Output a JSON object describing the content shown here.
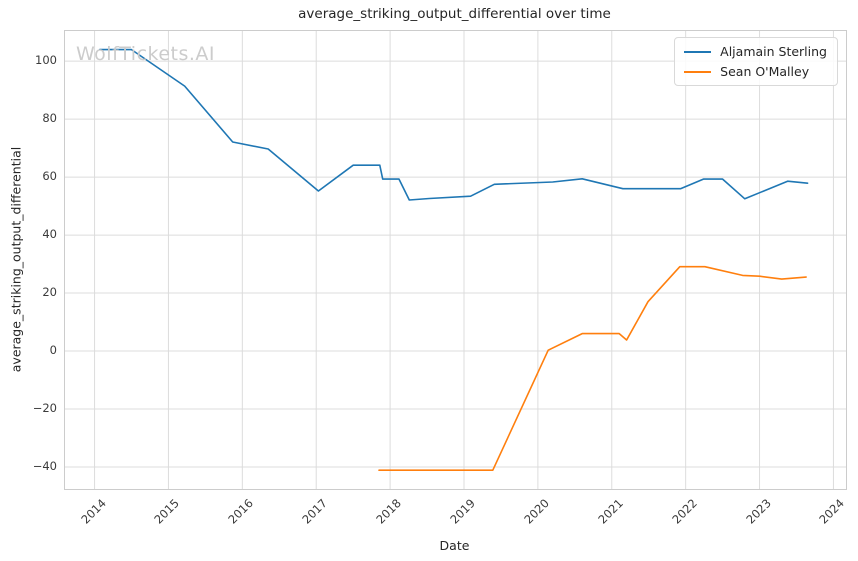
{
  "title": "average_striking_output_differential over time",
  "watermark": "WolfTickets.AI",
  "colors": {
    "series_blue": "#1f77b4",
    "series_orange": "#ff7f0e",
    "grid": "#dcdcdc",
    "spine": "#cccccc",
    "tick_text": "#3b3b3b",
    "title_text": "#262626",
    "watermark_text": "#cccccc"
  },
  "chart_data": {
    "type": "line",
    "title": "average_striking_output_differential over time",
    "xlabel": "Date",
    "ylabel": "average_striking_output_differential",
    "grid": true,
    "legend_position": "upper right",
    "x_range": [
      2013.6,
      2024.17
    ],
    "y_range": [
      -47.6,
      110.4
    ],
    "x_ticks": {
      "values": [
        2014,
        2015,
        2016,
        2017,
        2018,
        2019,
        2020,
        2021,
        2022,
        2023,
        2024
      ],
      "labels": [
        "2014",
        "2015",
        "2016",
        "2017",
        "2018",
        "2019",
        "2020",
        "2021",
        "2022",
        "2023",
        "2024"
      ]
    },
    "y_ticks": {
      "values": [
        100,
        80,
        60,
        40,
        20,
        0,
        -20,
        -40
      ],
      "labels": [
        "100",
        "80",
        "60",
        "40",
        "20",
        "0",
        "−20",
        "−40"
      ]
    },
    "series": [
      {
        "name": "Aljamain Sterling",
        "color": "#1f77b4",
        "x": [
          2014.07,
          2014.5,
          2015.22,
          2015.87,
          2016.35,
          2017.03,
          2017.5,
          2017.86,
          2017.9,
          2018.12,
          2018.26,
          2018.53,
          2019.09,
          2019.41,
          2020.2,
          2020.6,
          2021.15,
          2021.93,
          2022.24,
          2022.5,
          2022.8,
          2023.38,
          2023.65
        ],
        "y": [
          104.0,
          104.0,
          91.4,
          72.1,
          69.7,
          55.2,
          64.1,
          64.1,
          59.3,
          59.3,
          52.1,
          52.6,
          53.4,
          57.5,
          58.3,
          59.4,
          56.0,
          56.0,
          59.3,
          59.3,
          52.5,
          58.6,
          57.9
        ]
      },
      {
        "name": "Sean O'Malley",
        "color": "#ff7f0e",
        "x": [
          2017.85,
          2019.39,
          2020.14,
          2020.6,
          2021.1,
          2021.2,
          2021.49,
          2021.92,
          2022.26,
          2022.77,
          2023.0,
          2023.3,
          2023.63
        ],
        "y": [
          -41.1,
          -41.1,
          0.3,
          6.0,
          6.0,
          3.8,
          17.0,
          29.1,
          29.1,
          26.1,
          25.8,
          24.8,
          25.5
        ]
      }
    ]
  }
}
